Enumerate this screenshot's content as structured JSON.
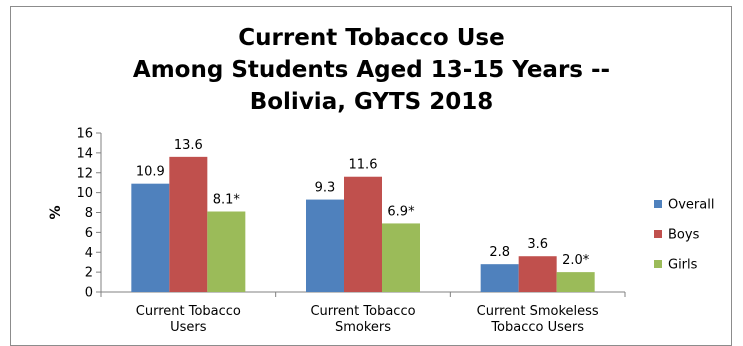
{
  "chart_data": {
    "type": "bar",
    "title_lines": [
      "Current Tobacco Use",
      "Among Students Aged 13-15 Years --",
      "Bolivia, GYTS 2018"
    ],
    "ylabel": "%",
    "ylim": [
      0,
      16
    ],
    "yticks": [
      0,
      2,
      4,
      6,
      8,
      10,
      12,
      14,
      16
    ],
    "grid": false,
    "legend_position": "right",
    "categories": [
      [
        "Current Tobacco",
        "Users"
      ],
      [
        "Current Tobacco",
        "Smokers"
      ],
      [
        "Current Smokeless",
        "Tobacco Users"
      ]
    ],
    "series": [
      {
        "name": "Overall",
        "color": "#4F81BD",
        "values": [
          10.9,
          9.3,
          2.8
        ],
        "labels": [
          "10.9",
          "9.3",
          "2.8"
        ]
      },
      {
        "name": "Boys",
        "color": "#C0504D",
        "values": [
          13.6,
          11.6,
          3.6
        ],
        "labels": [
          "13.6",
          "11.6",
          "3.6"
        ]
      },
      {
        "name": "Girls",
        "color": "#9BBB59",
        "values": [
          8.1,
          6.9,
          2.0
        ],
        "labels": [
          "8.1*",
          "6.9*",
          "2.0*"
        ]
      }
    ]
  }
}
